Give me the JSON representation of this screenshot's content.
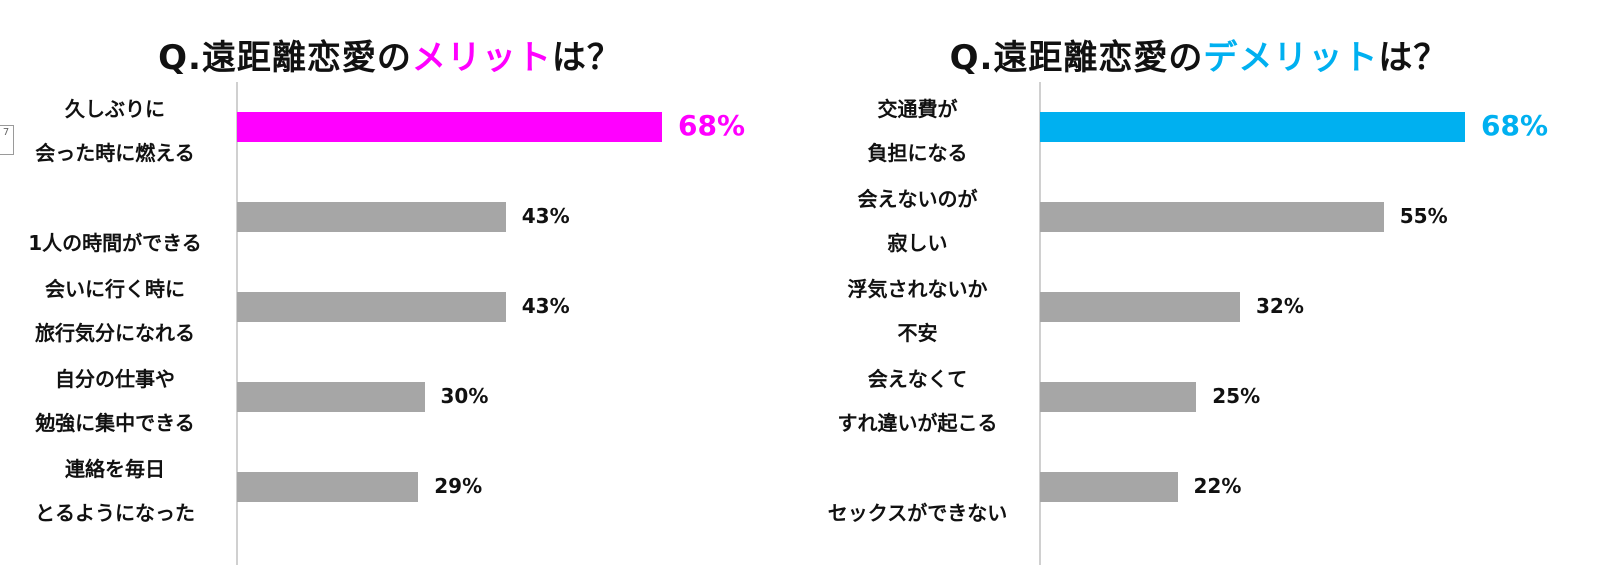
{
  "pin_tag": "7",
  "charts": {
    "merit": {
      "title_prefix": "Q.遠距離恋愛の",
      "title_highlight": "メリット",
      "title_suffix": "は？",
      "highlight_color": "#ff00ff"
    },
    "demerit": {
      "title_prefix": "Q.遠距離恋愛の",
      "title_highlight": "デメリット",
      "title_suffix": "は？",
      "highlight_color": "#00b0f0"
    }
  },
  "chart_data": [
    {
      "type": "bar",
      "orientation": "horizontal",
      "title": "Q.遠距離恋愛のメリットは？",
      "categories": [
        [
          "久しぶりに",
          "会った時に燃える"
        ],
        [
          "",
          "1人の時間ができる"
        ],
        [
          "会いに行く時に",
          "旅行気分になれる"
        ],
        [
          "自分の仕事や",
          "勉強に集中できる"
        ],
        [
          "連絡を毎日",
          "とるようになった"
        ]
      ],
      "values": [
        68,
        43,
        43,
        30,
        29
      ],
      "value_labels": [
        "68%",
        "43%",
        "43%",
        "30%",
        "29%"
      ],
      "unit": "%",
      "xlim": [
        0,
        100
      ],
      "bar_colors": [
        "#ff00ff",
        "#a6a6a6",
        "#a6a6a6",
        "#a6a6a6",
        "#a6a6a6"
      ],
      "grid": false,
      "legend": "none"
    },
    {
      "type": "bar",
      "orientation": "horizontal",
      "title": "Q.遠距離恋愛のデメリットは？",
      "categories": [
        [
          "交通費が",
          "負担になる"
        ],
        [
          "会えないのが",
          "寂しい"
        ],
        [
          "浮気されないか",
          "不安"
        ],
        [
          "会えなくて",
          "すれ違いが起こる"
        ],
        [
          "",
          "セックスができない"
        ]
      ],
      "values": [
        68,
        55,
        32,
        25,
        22
      ],
      "value_labels": [
        "68%",
        "55%",
        "32%",
        "25%",
        "22%"
      ],
      "unit": "%",
      "xlim": [
        0,
        100
      ],
      "bar_colors": [
        "#00b0f0",
        "#a6a6a6",
        "#a6a6a6",
        "#a6a6a6",
        "#a6a6a6"
      ],
      "grid": false,
      "legend": "none"
    }
  ]
}
